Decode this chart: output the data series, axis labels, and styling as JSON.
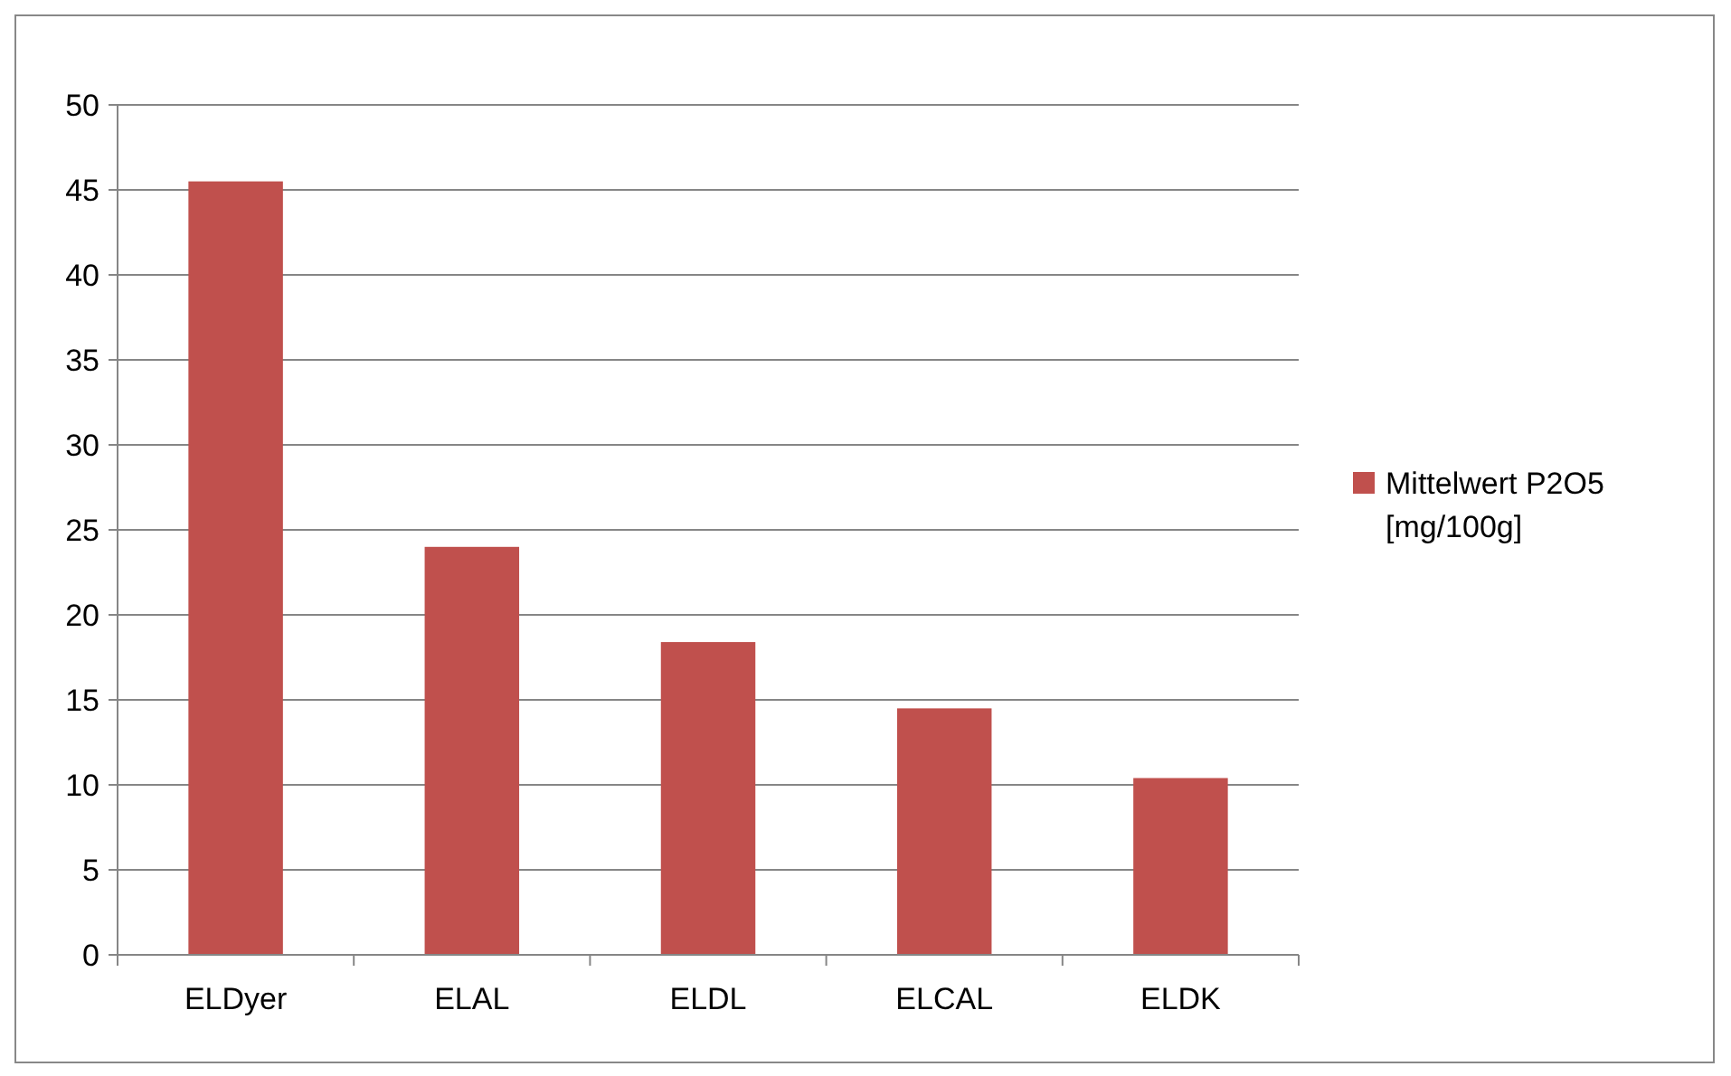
{
  "chart_data": {
    "type": "bar",
    "categories": [
      "ELDyer",
      "ELAL",
      "ELDL",
      "ELCAL",
      "ELDK"
    ],
    "series": [
      {
        "name": "Mittelwert P2O5 [mg/100g]",
        "color": "#c0504d",
        "values": [
          45.5,
          24.0,
          18.4,
          14.5,
          10.4
        ]
      }
    ],
    "ylim": [
      0,
      50
    ],
    "yticks": [
      0,
      5,
      10,
      15,
      20,
      25,
      30,
      35,
      40,
      45,
      50
    ],
    "grid": "y",
    "legend": "right"
  }
}
